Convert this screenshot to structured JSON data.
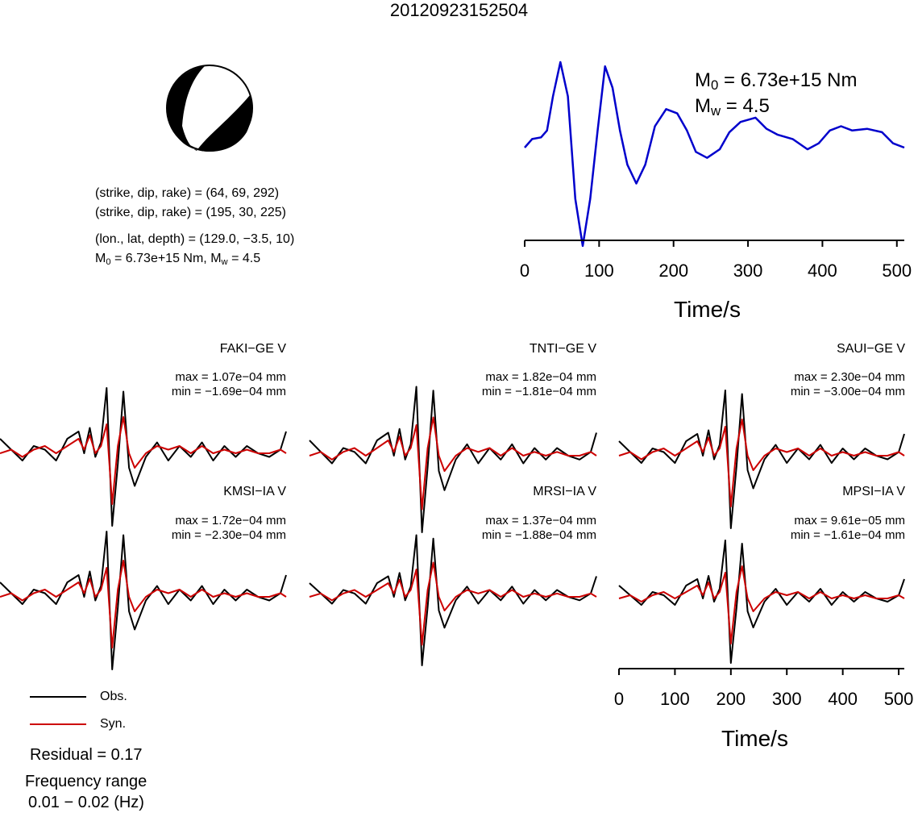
{
  "title": "20120923152504",
  "mechanism": {
    "plane1": "(strike, dip, rake) = (64, 69, 292)",
    "plane2": "(strike, dip, rake) = (195, 30, 225)",
    "location": "(lon., lat, depth) = (129.0, −3.5, 10)",
    "moment_prefix": "M",
    "moment_sub": "0",
    "moment_value": " = 6.73e+15 Nm, M",
    "mw_sub": "w",
    "mw_value": " = 4.5"
  },
  "stf": {
    "m0_label": "M",
    "m0_sub": "0",
    "m0_value": " = 6.73e+15 Nm",
    "mw_label": "M",
    "mw_sub": "w",
    "mw_value": " = 4.5",
    "color": "#0000cc"
  },
  "colors": {
    "observed": "#000000",
    "synthetic": "#cc0000"
  },
  "stations": [
    {
      "name": "FAKI−GE V",
      "max": "max = 1.07e−04 mm",
      "min": "min = −1.69e−04 mm"
    },
    {
      "name": "TNTI−GE V",
      "max": "max = 1.82e−04 mm",
      "min": "min = −1.81e−04 mm"
    },
    {
      "name": "SAUI−GE V",
      "max": "max = 2.30e−04 mm",
      "min": "min = −3.00e−04 mm"
    },
    {
      "name": "KMSI−IA V",
      "max": "max = 1.72e−04 mm",
      "min": "min = −2.30e−04 mm"
    },
    {
      "name": "MRSI−IA V",
      "max": "max = 1.37e−04 mm",
      "min": "min = −1.88e−04 mm"
    },
    {
      "name": "MPSI−IA V",
      "max": "max = 9.61e−05 mm",
      "min": "min = −1.61e−04 mm"
    }
  ],
  "legend": {
    "obs": "Obs.",
    "syn": "Syn."
  },
  "residual": "Residual = 0.17",
  "frequency_label": "Frequency range",
  "frequency_value": "0.01 − 0.02 (Hz)",
  "axes": {
    "xlabel": "Time/s",
    "ticks": [
      "0",
      "100",
      "200",
      "300",
      "400",
      "500"
    ]
  },
  "chart_data": [
    {
      "type": "line",
      "title": "",
      "xlabel": "Time/s",
      "ylabel": "",
      "xlim": [
        0,
        510
      ],
      "series": [
        {
          "x": [
            0,
            10,
            22,
            30,
            38,
            48,
            58,
            68,
            78,
            88,
            98,
            108,
            118,
            128,
            138,
            150,
            162,
            175,
            190,
            205,
            218,
            230,
            245,
            262,
            275,
            290,
            310,
            325,
            340,
            360,
            380,
            395,
            410,
            425,
            440,
            460,
            480,
            495,
            510
          ],
          "y": [
            0.0,
            0.1,
            0.12,
            0.2,
            0.6,
            1.0,
            0.6,
            -0.6,
            -1.15,
            -0.6,
            0.2,
            0.95,
            0.7,
            0.2,
            -0.2,
            -0.42,
            -0.2,
            0.25,
            0.45,
            0.4,
            0.2,
            -0.05,
            -0.12,
            -0.02,
            0.18,
            0.3,
            0.35,
            0.22,
            0.15,
            0.1,
            -0.02,
            0.05,
            0.2,
            0.25,
            0.2,
            0.22,
            0.18,
            0.05,
            0.0
          ]
        }
      ]
    },
    {
      "type": "line",
      "title": "",
      "xlabel": "Time/s",
      "ylabel": "",
      "xlim": [
        0,
        510
      ],
      "series": [
        {
          "name": "Obs.",
          "x": [
            0,
            20,
            40,
            60,
            80,
            100,
            120,
            140,
            150,
            160,
            170,
            180,
            190,
            200,
            210,
            220,
            230,
            240,
            260,
            280,
            300,
            320,
            340,
            360,
            380,
            400,
            420,
            440,
            460,
            480,
            500,
            510
          ],
          "y": [
            0.2,
            0.05,
            -0.1,
            0.1,
            0.05,
            -0.1,
            0.2,
            0.3,
            0.0,
            0.35,
            -0.05,
            0.15,
            0.9,
            -1.0,
            -0.15,
            0.85,
            -0.2,
            -0.45,
            -0.05,
            0.15,
            -0.1,
            0.1,
            -0.05,
            0.15,
            -0.1,
            0.1,
            -0.05,
            0.1,
            0.0,
            -0.05,
            0.05,
            0.3
          ]
        },
        {
          "name": "Syn.",
          "x": [
            0,
            20,
            40,
            60,
            80,
            100,
            120,
            140,
            150,
            160,
            170,
            180,
            190,
            200,
            210,
            220,
            230,
            240,
            260,
            280,
            300,
            320,
            340,
            360,
            380,
            400,
            420,
            440,
            460,
            480,
            500,
            510
          ],
          "y": [
            0.0,
            0.05,
            -0.05,
            0.05,
            0.1,
            0.0,
            0.1,
            0.2,
            0.05,
            0.25,
            0.0,
            0.1,
            0.4,
            -0.7,
            0.1,
            0.5,
            0.0,
            -0.2,
            0.0,
            0.1,
            0.05,
            0.1,
            0.0,
            0.1,
            0.0,
            0.05,
            0.0,
            0.05,
            0.0,
            0.0,
            0.05,
            0.0
          ]
        }
      ]
    }
  ]
}
